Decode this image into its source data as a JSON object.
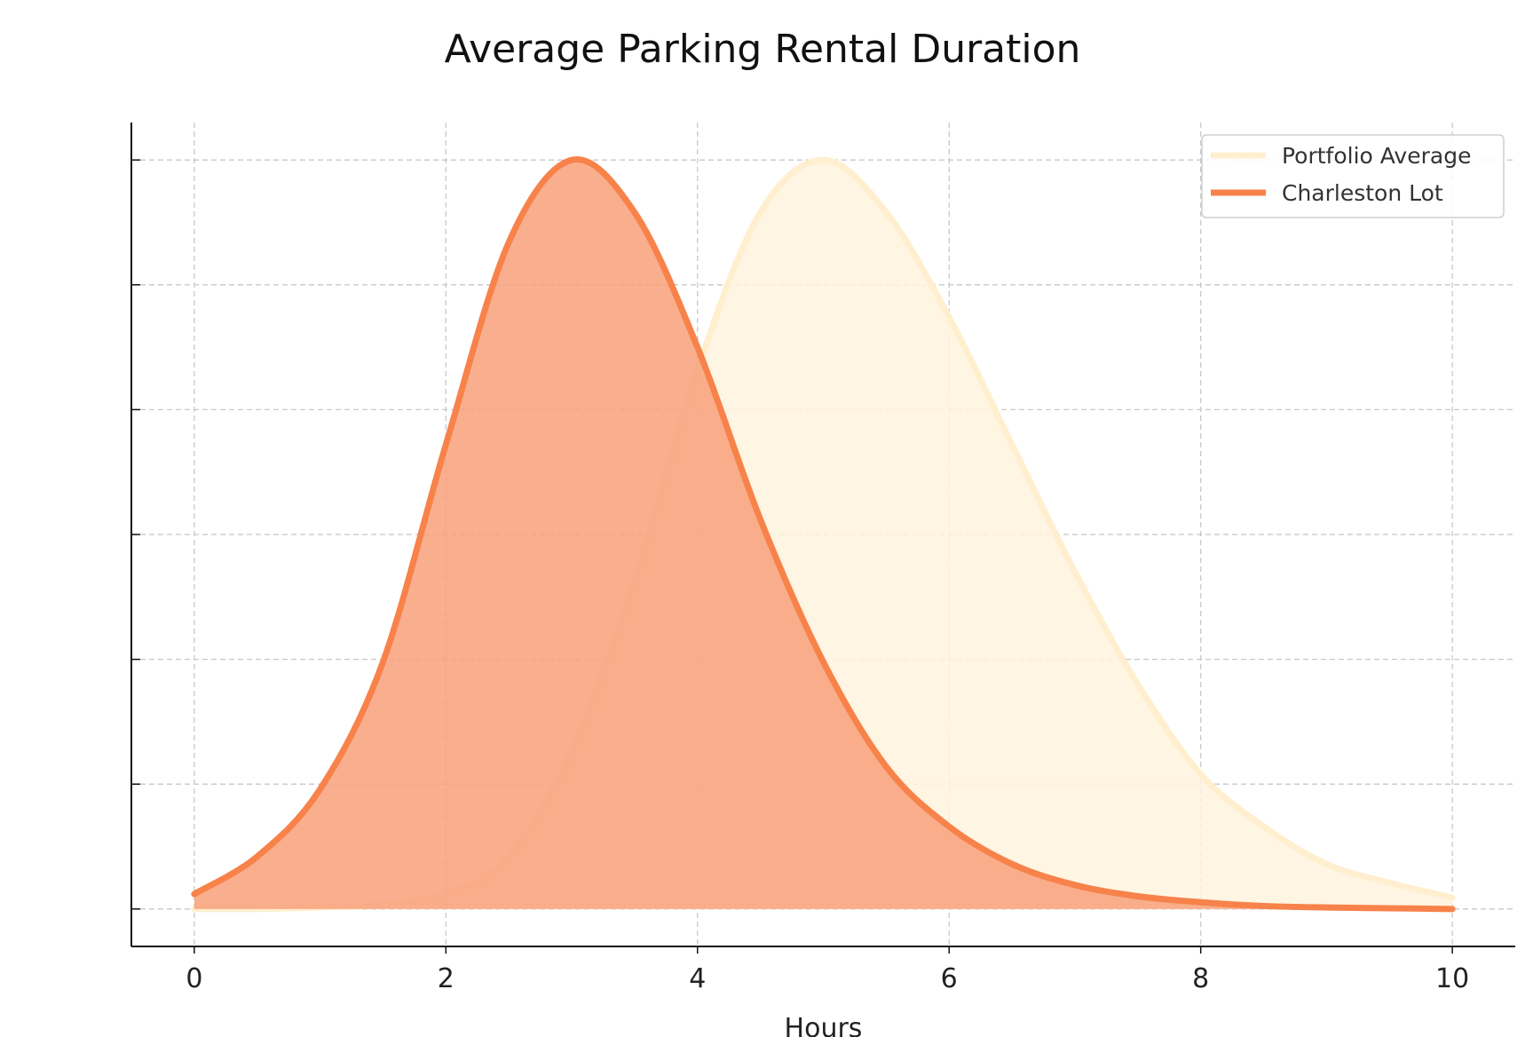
{
  "chart_data": {
    "type": "area",
    "title": "Average Parking Rental Duration",
    "xlabel": "Hours",
    "ylabel": "",
    "xlim": [
      -0.5,
      10.5
    ],
    "ylim": [
      -0.05,
      1.05
    ],
    "xticks": [
      0,
      2,
      4,
      6,
      8,
      10
    ],
    "xtick_labels": [
      "0",
      "2",
      "4",
      "6",
      "8",
      "10"
    ],
    "yticks": [
      0,
      0.1667,
      0.3333,
      0.5,
      0.6667,
      0.8333,
      1.0
    ],
    "ytick_labels_shown": false,
    "grid": true,
    "legend_position": "top-right",
    "x": [
      0,
      0.5,
      1,
      1.5,
      2,
      2.5,
      3,
      3.5,
      4,
      4.5,
      5,
      5.5,
      6,
      6.5,
      7,
      7.5,
      8,
      8.5,
      9,
      9.5,
      10
    ],
    "series": [
      {
        "name": "Portfolio Average",
        "color": "#FFEFCF",
        "fill_color": "#FFF3DE",
        "values": [
          0.0,
          0.0,
          0.002,
          0.006,
          0.02,
          0.07,
          0.21,
          0.44,
          0.72,
          0.93,
          1.0,
          0.93,
          0.79,
          0.62,
          0.45,
          0.3,
          0.18,
          0.11,
          0.06,
          0.035,
          0.015
        ]
      },
      {
        "name": "Charleston Lot",
        "color": "#F7824A",
        "fill_color": "#F8A07A",
        "values": [
          0.02,
          0.07,
          0.16,
          0.33,
          0.62,
          0.89,
          1.0,
          0.93,
          0.75,
          0.52,
          0.33,
          0.19,
          0.11,
          0.06,
          0.032,
          0.017,
          0.009,
          0.004,
          0.002,
          0.001,
          0.0
        ]
      }
    ]
  }
}
